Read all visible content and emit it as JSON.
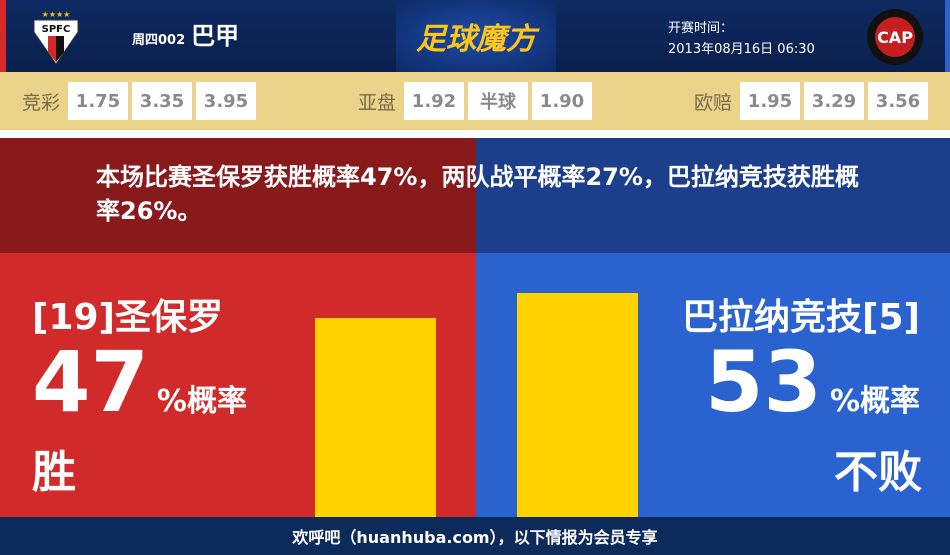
{
  "header": {
    "home_logo_text": "SPFC",
    "match_no": "周四002",
    "league": "巴甲",
    "brand": "足球魔方",
    "kickoff_label": "开赛时间：",
    "kickoff_time": "2013年08月16日 06:30",
    "away_logo_text": "CAP"
  },
  "odds": [
    {
      "label": "竞彩",
      "values": [
        "1.75",
        "3.35",
        "3.95"
      ]
    },
    {
      "label": "亚盘",
      "values": [
        "1.92",
        "半球",
        "1.90"
      ]
    },
    {
      "label": "欧赔",
      "values": [
        "1.95",
        "3.29",
        "3.56"
      ]
    }
  ],
  "summary": "本场比赛圣保罗获胜概率47%，两队战平概率27%，巴拉纳竞技获胜概率26%。",
  "home": {
    "team": "[19]圣保罗",
    "pct": "47",
    "pct_label": "%概率",
    "result": "胜",
    "value": 47
  },
  "away": {
    "team": "巴拉纳竞技[5]",
    "pct": "53",
    "pct_label": "%概率",
    "result": "不败",
    "value": 53
  },
  "colors": {
    "home": "#d02a2a",
    "away": "#2a62d0",
    "bar": "#ffd200"
  },
  "footer": "欢呼吧（huanhuba.com），以下情报为会员专享"
}
